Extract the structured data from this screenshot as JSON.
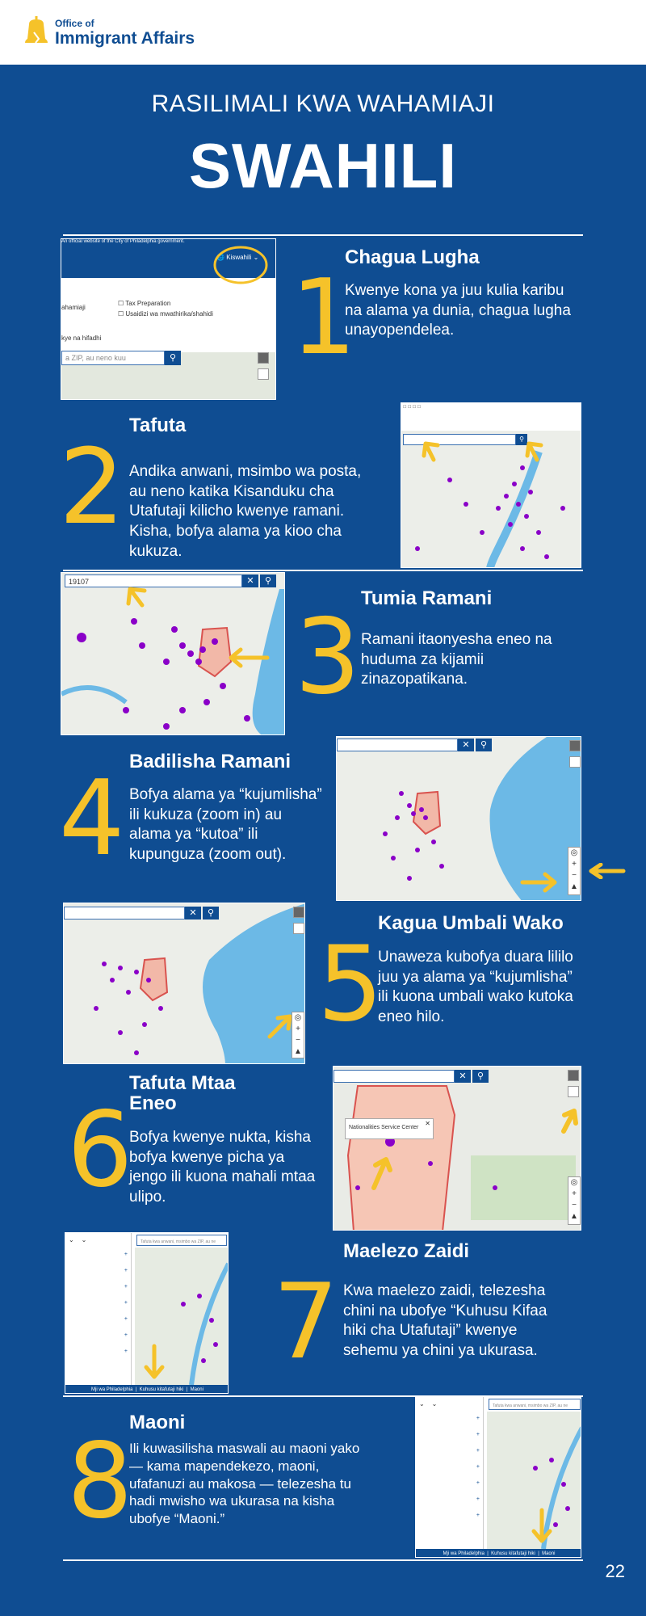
{
  "header": {
    "org_small": "Office of",
    "org_big": "Immigrant Affairs"
  },
  "subtitle": "RASILIMALI KWA WAHAMIAJI",
  "title": "SWAHILI",
  "steps": [
    {
      "number": "1",
      "title": "Chagua Lugha",
      "text": "Kwenye kona ya juu kulia karibu na alama ya dunia, chagua lugha unayopendelea."
    },
    {
      "number": "2",
      "title": "Tafuta",
      "text": "Andika anwani, msimbo wa posta, au neno katika Kisanduku cha Utafutaji kilicho kwenye ramani. Kisha, bofya alama ya kioo cha kukuza."
    },
    {
      "number": "3",
      "title": "Tumia Ramani",
      "text": "Ramani itaonyesha eneo na huduma za kijamii zinazopatikana."
    },
    {
      "number": "4",
      "title": "Badilisha Ramani",
      "text": "Bofya alama ya “kujumlisha” ili kukuza (zoom in) au alama ya “kutoa” ili kupunguza (zoom out)."
    },
    {
      "number": "5",
      "title": "Kagua Umbali Wako",
      "text": "Unaweza kubofya duara lililo juu ya alama ya “kujumlisha” ili kuona umbali wako kutoka eneo hilo."
    },
    {
      "number": "6",
      "title": "Tafuta Mtaa Eneo",
      "text": "Bofya kwenye nukta, kisha bofya kwenye picha ya jengo ili kuona mahali mtaa ulipo."
    },
    {
      "number": "7",
      "title": "Maelezo Zaidi",
      "text": "Kwa maelezo zaidi, telezesha chini na ubofye “Kuhusu Kifaa hiki cha Utafutaji” kwenye sehemu ya chini ya ukurasa."
    },
    {
      "number": "8",
      "title": "Maoni",
      "text": "Ili kuwasilisha maswali au maoni yako — kama mapendekezo, maoni, ufafanuzi au makosa — telezesha tu hadi mwisho wa ukurasa na kisha ubofye “Maoni.”"
    }
  ],
  "shots": {
    "s1_banner": "An official website of the City of Philadelphia government.",
    "s1_lang": "Kiswahili",
    "s1_opt1": "Tax Preparation",
    "s1_opt2": "Usaidizi wa mwathirika/shahidi",
    "s1_left1": "ahamiaji",
    "s1_left2": "kye na hifadhi",
    "s1_search": "a ZIP, au neno kuu",
    "s3_search": "19107",
    "s6_popup": "Nationalities Service Center",
    "s7_search": "Tafuta kwa anwani, msimbo wa ZIP, au ne",
    "s8_search": "Tafuta kwa anwani, msimbo wa ZIP, au ne",
    "footer_links": [
      "Mji wa Philadelphia",
      "Kuhusu kitafutaji hiki",
      "Maoni"
    ]
  },
  "page_number": "22",
  "colors": {
    "background": "#0f4d92",
    "accent": "#f5c22a",
    "dots": "#8a00c8"
  }
}
